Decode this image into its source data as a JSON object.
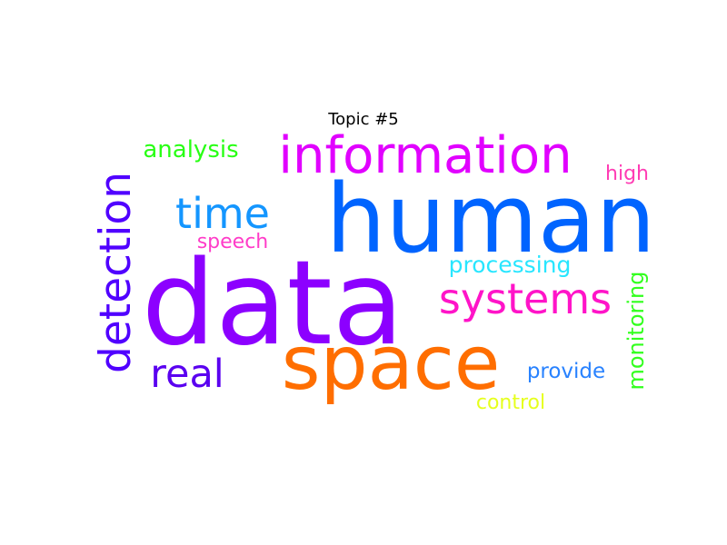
{
  "title": "Topic #5",
  "words": [
    {
      "text": "data",
      "color": "#8c00ff"
    },
    {
      "text": "human",
      "color": "#0064ff"
    },
    {
      "text": "space",
      "color": "#ff6e00"
    },
    {
      "text": "information",
      "color": "#e100ff"
    },
    {
      "text": "systems",
      "color": "#ff14c8"
    },
    {
      "text": "detection",
      "color": "#5000ff"
    },
    {
      "text": "time",
      "color": "#1496ff"
    },
    {
      "text": "real",
      "color": "#5a00f0"
    },
    {
      "text": "analysis",
      "color": "#28ff14"
    },
    {
      "text": "processing",
      "color": "#28e6ff"
    },
    {
      "text": "monitoring",
      "color": "#32ff1e"
    },
    {
      "text": "provide",
      "color": "#2882ff"
    },
    {
      "text": "speech",
      "color": "#ff3cc8"
    },
    {
      "text": "high",
      "color": "#ff3cb4"
    },
    {
      "text": "control",
      "color": "#e6ff1e"
    }
  ]
}
